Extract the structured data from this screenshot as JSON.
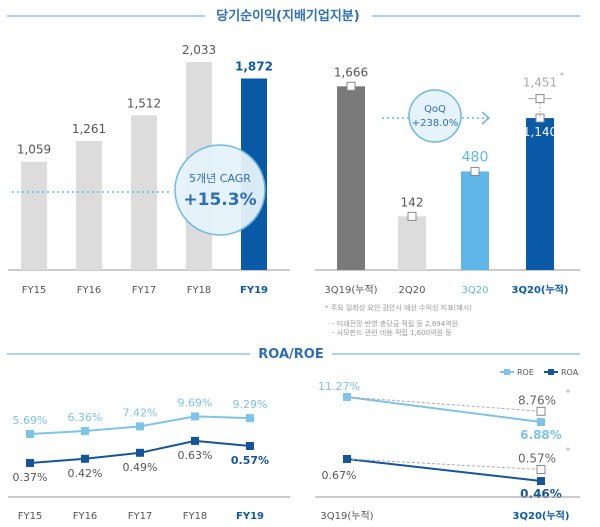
{
  "colors": {
    "title": "#2e6fb6",
    "grey_bar": "#dcdcdc",
    "dark_grey_bar": "#7a7a7a",
    "light_blue": "#5fb6e8",
    "dark_blue": "#0b5aa8",
    "roe": "#7ec3e8",
    "roa": "#14549a"
  },
  "chart_data": [
    {
      "type": "bar",
      "title": "당기순이익(지배기업지분)",
      "categories": [
        "FY15",
        "FY16",
        "FY17",
        "FY18",
        "FY19"
      ],
      "values": [
        1059,
        1261,
        1512,
        2033,
        1872
      ],
      "labels": [
        "1,059",
        "1,261",
        "1,512",
        "2,033",
        "1,872"
      ],
      "annotation": {
        "line1": "5개년 CAGR",
        "line2": "+15.3%"
      }
    },
    {
      "type": "bar",
      "categories": [
        "3Q19(누적)",
        "2Q20",
        "3Q20",
        "3Q20(누적)"
      ],
      "values": [
        1666,
        142,
        480,
        1140
      ],
      "labels": [
        "1,666",
        "142",
        "480",
        "1,140"
      ],
      "adjusted": {
        "category": "3Q20(누적)",
        "value": 1451,
        "label": "1,451",
        "mark": "*"
      },
      "annotation": {
        "line1": "QoQ",
        "line2": "+238.0%"
      },
      "footnote": [
        "* 주요 일회성 요인 감안시 예상 수익성 지표(예시)",
        "- 미래전망 반영 충당금 적립 등 2,694억원",
        "- 사모펀드 관련 비용 적립 1,600억원 등"
      ]
    },
    {
      "type": "line",
      "title": "ROA/ROE",
      "categories": [
        "FY15",
        "FY16",
        "FY17",
        "FY18",
        "FY19"
      ],
      "series": [
        {
          "name": "ROE",
          "values": [
            5.69,
            6.36,
            7.42,
            9.69,
            9.29
          ],
          "labels": [
            "5.69%",
            "6.36%",
            "7.42%",
            "9.69%",
            "9.29%"
          ]
        },
        {
          "name": "ROA",
          "values": [
            0.37,
            0.42,
            0.49,
            0.63,
            0.57
          ],
          "labels": [
            "0.37%",
            "0.42%",
            "0.49%",
            "0.63%",
            "0.57%"
          ]
        }
      ]
    },
    {
      "type": "line",
      "categories": [
        "3Q19(누적)",
        "3Q20(누적)"
      ],
      "series": [
        {
          "name": "ROE",
          "values": [
            11.27,
            6.88
          ],
          "labels": [
            "11.27%",
            "6.88%"
          ],
          "adjusted": {
            "value": 8.76,
            "label": "8.76%",
            "mark": "*"
          }
        },
        {
          "name": "ROA",
          "values": [
            0.67,
            0.46
          ],
          "labels": [
            "0.67%",
            "0.46%"
          ],
          "adjusted": {
            "value": 0.57,
            "label": "0.57%",
            "mark": "*"
          }
        }
      ],
      "legend": [
        "ROE",
        "ROA"
      ],
      "legend_placement": "top-right"
    }
  ]
}
